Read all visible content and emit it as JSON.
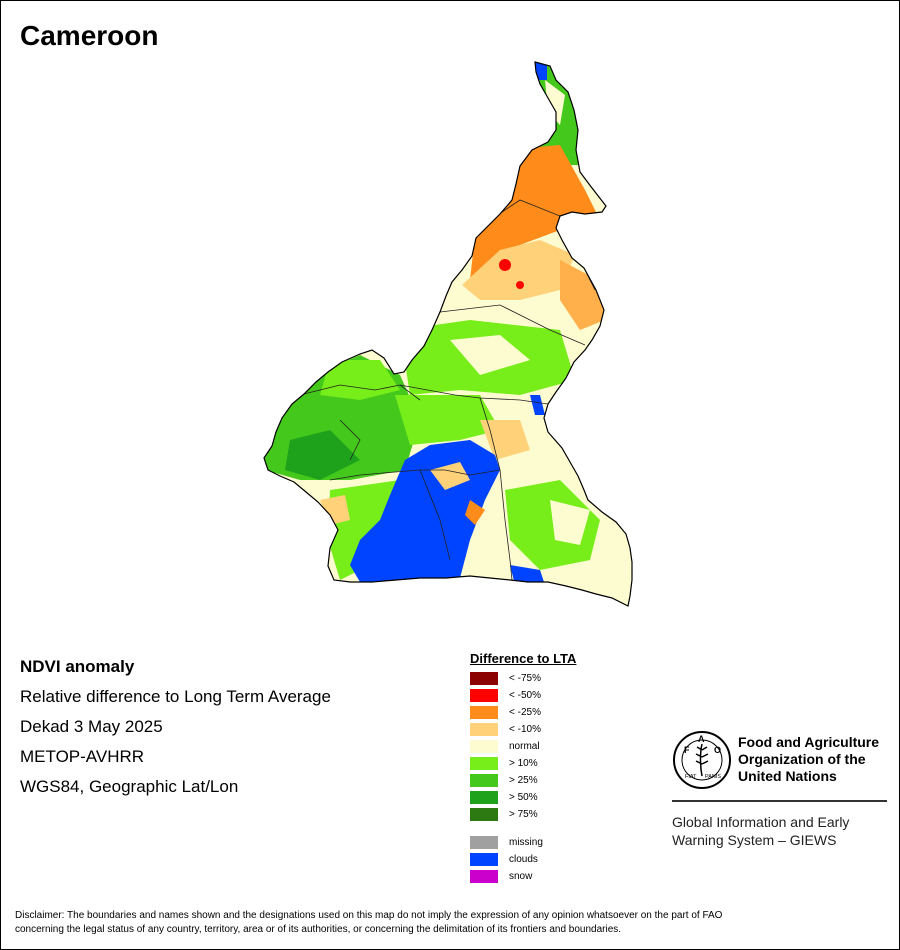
{
  "title": "Cameroon",
  "info": {
    "heading": "NDVI anomaly",
    "line1": "Relative difference to Long Term Average",
    "line2": "Dekad 3 May 2025",
    "line3": "METOP-AVHRR",
    "line4": "WGS84, Geographic Lat/Lon"
  },
  "legend": {
    "title": "Difference to LTA",
    "items": [
      {
        "label": "< -75%",
        "color": "#8b0000"
      },
      {
        "label": "< -50%",
        "color": "#ff0000"
      },
      {
        "label": "< -25%",
        "color": "#ff8c1a"
      },
      {
        "label": "< -10%",
        "color": "#ffd27a"
      },
      {
        "label": "normal",
        "color": "#fdfbd0"
      },
      {
        "label": "> 10%",
        "color": "#77ee1a"
      },
      {
        "label": "> 25%",
        "color": "#44c81c"
      },
      {
        "label": "> 50%",
        "color": "#1ea21c"
      },
      {
        "label": "> 75%",
        "color": "#2d7a12"
      }
    ],
    "extra": [
      {
        "label": "missing",
        "color": "#a0a0a0"
      },
      {
        "label": "clouds",
        "color": "#0044ff"
      },
      {
        "label": "snow",
        "color": "#cc00cc"
      }
    ]
  },
  "fao": {
    "logo_text": "FAO",
    "motto": "FIAT PANIS",
    "name_line1": "Food and Agriculture",
    "name_line2": "Organization of the",
    "name_line3": "United Nations",
    "giews_line1": "Global Information and Early",
    "giews_line2": "Warning System – GIEWS"
  },
  "disclaimer_line1": "Disclaimer: The boundaries and names shown and the designations used on this map do not imply the expression of any opinion whatsoever on the part of FAO",
  "disclaimer_line2": "concerning the legal status of any country, territory, area or of its authorities, or concerning the delimitation of its frontiers and boundaries."
}
